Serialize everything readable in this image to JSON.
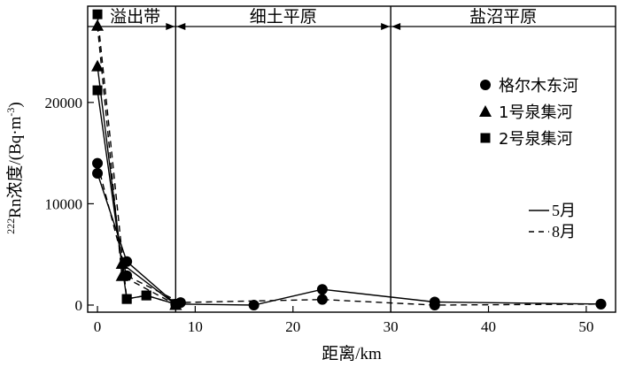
{
  "chart_data": {
    "type": "line",
    "xlabel": "距离/km",
    "ylabel_sup": "222",
    "ylabel_main": "Rn浓度/(Bq·m",
    "ylabel_exp": "-3",
    "ylabel_close": ")",
    "xlim": [
      -1,
      53
    ],
    "ylim": [
      -700,
      29500
    ],
    "x_ticks": [
      0,
      10,
      20,
      30,
      40,
      50
    ],
    "y_ticks": [
      0,
      10000,
      20000
    ],
    "zones": [
      {
        "label": "溢出带",
        "from": -1,
        "to": 8
      },
      {
        "label": "细土平原",
        "from": 8,
        "to": 30
      },
      {
        "label": "盐沼平原",
        "from": 30,
        "to": 53
      }
    ],
    "legend_markers": [
      {
        "marker": "circle",
        "label": "格尔木东河"
      },
      {
        "marker": "triangle",
        "label": "1号泉集河"
      },
      {
        "marker": "square",
        "label": "2号泉集河"
      }
    ],
    "legend_lines": [
      {
        "style": "solid",
        "label": "5月"
      },
      {
        "style": "dashed",
        "label": "8月"
      }
    ],
    "series": [
      {
        "river": "格尔木东河",
        "month": "5月",
        "marker": "circle",
        "style": "solid",
        "points": [
          [
            0,
            13000
          ],
          [
            3,
            4300
          ],
          [
            8,
            100
          ],
          [
            16,
            0
          ],
          [
            23,
            1550
          ],
          [
            34.5,
            300
          ],
          [
            51.5,
            100
          ]
        ]
      },
      {
        "river": "格尔木东河",
        "month": "8月",
        "marker": "circle",
        "style": "dashed",
        "points": [
          [
            0,
            14000
          ],
          [
            3,
            2900
          ],
          [
            8.5,
            250
          ],
          [
            23,
            550
          ],
          [
            34.5,
            0
          ],
          [
            51.5,
            100
          ]
        ]
      },
      {
        "river": "1号泉集河",
        "month": "5月",
        "marker": "triangle",
        "style": "solid",
        "points": [
          [
            0,
            23600
          ],
          [
            2.5,
            4100
          ],
          [
            8,
            50
          ]
        ]
      },
      {
        "river": "1号泉集河",
        "month": "8月",
        "marker": "triangle",
        "style": "dashed",
        "points": [
          [
            0,
            27600
          ],
          [
            2.5,
            2900
          ],
          [
            8,
            50
          ]
        ]
      },
      {
        "river": "2号泉集河",
        "month": "5月",
        "marker": "square",
        "style": "solid",
        "points": [
          [
            0,
            21200
          ],
          [
            3,
            600
          ],
          [
            5,
            950
          ],
          [
            8,
            100
          ]
        ]
      },
      {
        "river": "2号泉集河",
        "month": "8月",
        "marker": "square",
        "style": "dashed",
        "points": [
          [
            0,
            28700
          ],
          [
            3,
            600
          ],
          [
            5,
            950
          ],
          [
            8,
            100
          ]
        ]
      }
    ]
  }
}
